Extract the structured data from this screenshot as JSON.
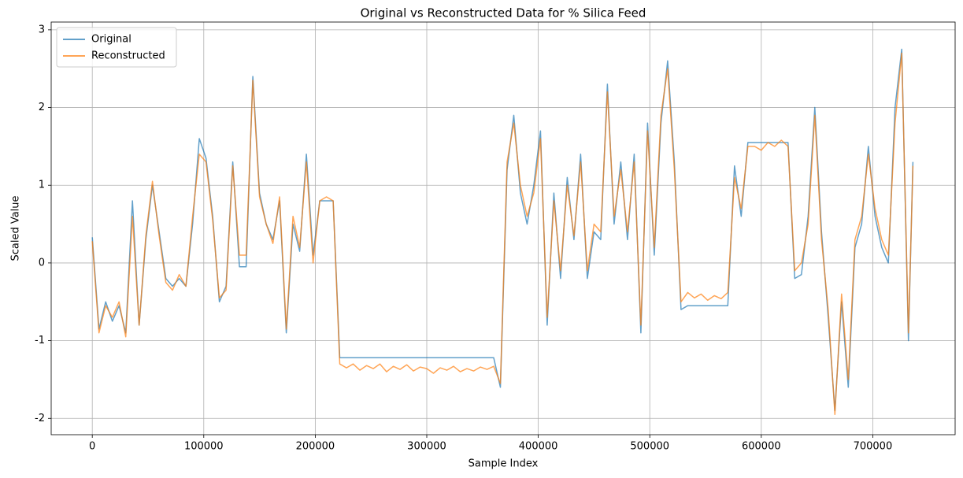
{
  "chart_data": {
    "type": "line",
    "title": "Original vs Reconstructed Data for % Silica Feed",
    "x_label": "Sample Index",
    "y_label": "Scaled Value",
    "x": [
      0,
      6000,
      12000,
      18000,
      24000,
      30000,
      36000,
      42000,
      48000,
      54000,
      60000,
      66000,
      72000,
      78000,
      84000,
      90000,
      96000,
      102000,
      108000,
      114000,
      120000,
      126000,
      132000,
      138000,
      144000,
      150000,
      156000,
      162000,
      168000,
      174000,
      180000,
      186000,
      192000,
      198000,
      204000,
      210000,
      216000,
      222000,
      228000,
      234000,
      240000,
      246000,
      252000,
      258000,
      264000,
      270000,
      276000,
      282000,
      288000,
      294000,
      300000,
      306000,
      312000,
      318000,
      324000,
      330000,
      336000,
      342000,
      348000,
      354000,
      360000,
      366000,
      372000,
      378000,
      384000,
      390000,
      396000,
      402000,
      408000,
      414000,
      420000,
      426000,
      432000,
      438000,
      444000,
      450000,
      456000,
      462000,
      468000,
      474000,
      480000,
      486000,
      492000,
      498000,
      504000,
      510000,
      516000,
      522000,
      528000,
      534000,
      540000,
      546000,
      552000,
      558000,
      564000,
      570000,
      576000,
      582000,
      588000,
      594000,
      600000,
      606000,
      612000,
      618000,
      624000,
      630000,
      636000,
      642000,
      648000,
      654000,
      660000,
      666000,
      672000,
      678000,
      684000,
      690000,
      696000,
      702000,
      708000,
      714000,
      720000,
      726000,
      732000,
      736000
    ],
    "series": [
      {
        "name": "Original",
        "color": "#1f77b4",
        "values": [
          0.33,
          -0.85,
          -0.5,
          -0.75,
          -0.55,
          -0.9,
          0.8,
          -0.8,
          0.3,
          1.0,
          0.4,
          -0.2,
          -0.3,
          -0.2,
          -0.3,
          0.5,
          1.6,
          1.35,
          0.6,
          -0.5,
          -0.3,
          1.3,
          -0.05,
          -0.05,
          2.4,
          0.9,
          0.5,
          0.3,
          0.8,
          -0.9,
          0.5,
          0.15,
          1.4,
          0.1,
          0.8,
          0.8,
          0.8,
          -1.22,
          -1.22,
          -1.22,
          -1.22,
          -1.22,
          -1.22,
          -1.22,
          -1.22,
          -1.22,
          -1.22,
          -1.22,
          -1.22,
          -1.22,
          -1.22,
          -1.22,
          -1.22,
          -1.22,
          -1.22,
          -1.22,
          -1.22,
          -1.22,
          -1.22,
          -1.22,
          -1.22,
          -1.6,
          1.2,
          1.9,
          0.9,
          0.5,
          1.0,
          1.7,
          -0.8,
          0.9,
          -0.2,
          1.1,
          0.3,
          1.4,
          -0.2,
          0.4,
          0.3,
          2.3,
          0.5,
          1.3,
          0.3,
          1.4,
          -0.9,
          1.8,
          0.1,
          1.8,
          2.6,
          1.3,
          -0.6,
          -0.55,
          -0.55,
          -0.55,
          -0.55,
          -0.55,
          -0.55,
          -0.55,
          1.25,
          0.6,
          1.55,
          1.55,
          1.55,
          1.55,
          1.55,
          1.55,
          1.55,
          -0.2,
          -0.15,
          0.6,
          2.0,
          0.4,
          -0.7,
          -1.9,
          -0.5,
          -1.6,
          0.2,
          0.5,
          1.5,
          0.6,
          0.2,
          0.0,
          2.0,
          2.75,
          -1.0,
          1.3
        ]
      },
      {
        "name": "Reconstructed",
        "color": "#ff7f0e",
        "values": [
          0.28,
          -0.9,
          -0.55,
          -0.7,
          -0.5,
          -0.95,
          0.6,
          -0.8,
          0.35,
          1.05,
          0.35,
          -0.25,
          -0.35,
          -0.15,
          -0.3,
          0.6,
          1.4,
          1.3,
          0.55,
          -0.45,
          -0.35,
          1.25,
          0.1,
          0.1,
          2.35,
          0.85,
          0.5,
          0.25,
          0.85,
          -0.85,
          0.6,
          0.2,
          1.3,
          0.0,
          0.8,
          0.85,
          0.8,
          -1.3,
          -1.35,
          -1.3,
          -1.38,
          -1.32,
          -1.36,
          -1.3,
          -1.4,
          -1.33,
          -1.37,
          -1.31,
          -1.39,
          -1.34,
          -1.36,
          -1.42,
          -1.35,
          -1.38,
          -1.33,
          -1.4,
          -1.36,
          -1.39,
          -1.34,
          -1.37,
          -1.33,
          -1.55,
          1.3,
          1.8,
          1.0,
          0.6,
          0.9,
          1.6,
          -0.7,
          0.8,
          -0.1,
          1.0,
          0.35,
          1.3,
          -0.1,
          0.5,
          0.4,
          2.2,
          0.6,
          1.2,
          0.4,
          1.3,
          -0.8,
          1.7,
          0.2,
          1.9,
          2.5,
          1.2,
          -0.5,
          -0.38,
          -0.45,
          -0.4,
          -0.48,
          -0.42,
          -0.46,
          -0.38,
          1.1,
          0.7,
          1.5,
          1.5,
          1.45,
          1.55,
          1.5,
          1.58,
          1.5,
          -0.1,
          0.0,
          0.5,
          1.9,
          0.3,
          -0.6,
          -1.95,
          -0.4,
          -1.5,
          0.3,
          0.6,
          1.4,
          0.7,
          0.3,
          0.1,
          1.8,
          2.7,
          -0.9,
          1.25
        ]
      }
    ],
    "xlim": [
      -36850,
      773850
    ],
    "ylim": [
      -2.21,
      3.1
    ],
    "xticks": [
      0,
      100000,
      200000,
      300000,
      400000,
      500000,
      600000,
      700000
    ],
    "yticks": [
      -2,
      -1,
      0,
      1,
      2,
      3
    ],
    "grid": true,
    "legend": "upper-left"
  }
}
